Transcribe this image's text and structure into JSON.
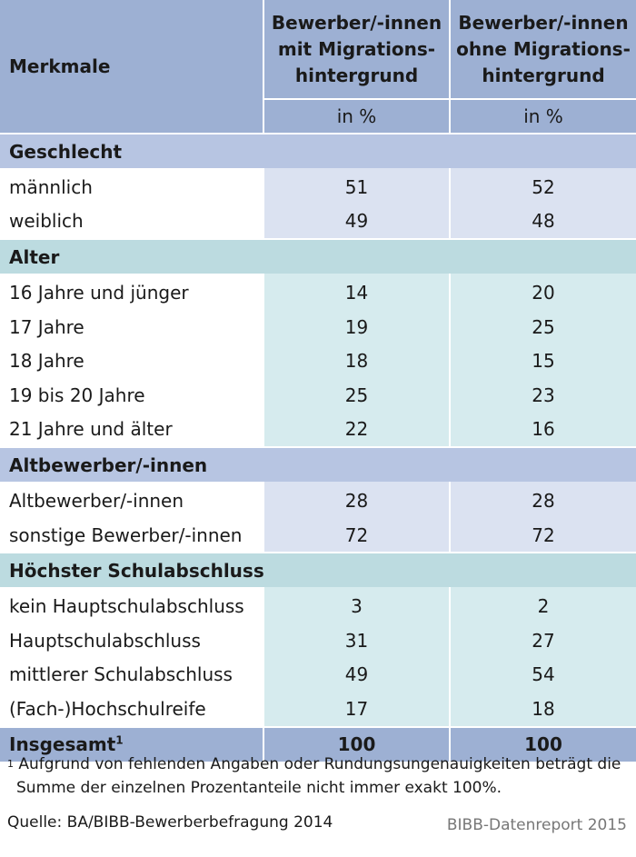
{
  "header": {
    "row_label": "Merkmale",
    "col1": [
      "Bewerber/-innen",
      "mit Migrations-",
      "hintergrund"
    ],
    "col2": [
      "Bewerber/-innen",
      "ohne Migrations-",
      "hintergrund"
    ],
    "unit1": "in %",
    "unit2": "in %"
  },
  "sections": [
    {
      "title": "Geschlecht",
      "rows": [
        {
          "label": "männlich",
          "v1": "51",
          "v2": "52"
        },
        {
          "label": "weiblich",
          "v1": "49",
          "v2": "48"
        }
      ]
    },
    {
      "title": "Alter",
      "rows": [
        {
          "label": "16 Jahre und jünger",
          "v1": "14",
          "v2": "20"
        },
        {
          "label": "17 Jahre",
          "v1": "19",
          "v2": "25"
        },
        {
          "label": "18 Jahre",
          "v1": "18",
          "v2": "15"
        },
        {
          "label": "19 bis 20 Jahre",
          "v1": "25",
          "v2": "23"
        },
        {
          "label": "21 Jahre und älter",
          "v1": "22",
          "v2": "16"
        }
      ]
    },
    {
      "title": "Altbewerber/-innen",
      "rows": [
        {
          "label": "Altbewerber/-innen",
          "v1": "28",
          "v2": "28"
        },
        {
          "label": "sonstige Bewerber/-innen",
          "v1": "72",
          "v2": "72"
        }
      ]
    },
    {
      "title": "Höchster Schulabschluss",
      "rows": [
        {
          "label": "kein Hauptschulabschluss",
          "v1": "3",
          "v2": "2"
        },
        {
          "label": "Hauptschulabschluss",
          "v1": "31",
          "v2": "27"
        },
        {
          "label": "mittlerer Schulabschluss",
          "v1": "49",
          "v2": "54"
        },
        {
          "label": "(Fach-)Hochschulreife",
          "v1": "17",
          "v2": "18"
        }
      ]
    }
  ],
  "total": {
    "label": "Insgesamt",
    "sup": "1",
    "v1": "100",
    "v2": "100"
  },
  "footnote": {
    "mark": "1",
    "line1": "Aufgrund von fehlenden Angaben oder Rundungsungenauigkeiten beträgt die",
    "line2": "Summe der einzelnen Prozentanteile nicht immer exakt 100%."
  },
  "source": "Quelle: BA/BIBB-Bewerberbefragung 2014",
  "brand": "BIBB-Datenreport 2015"
}
